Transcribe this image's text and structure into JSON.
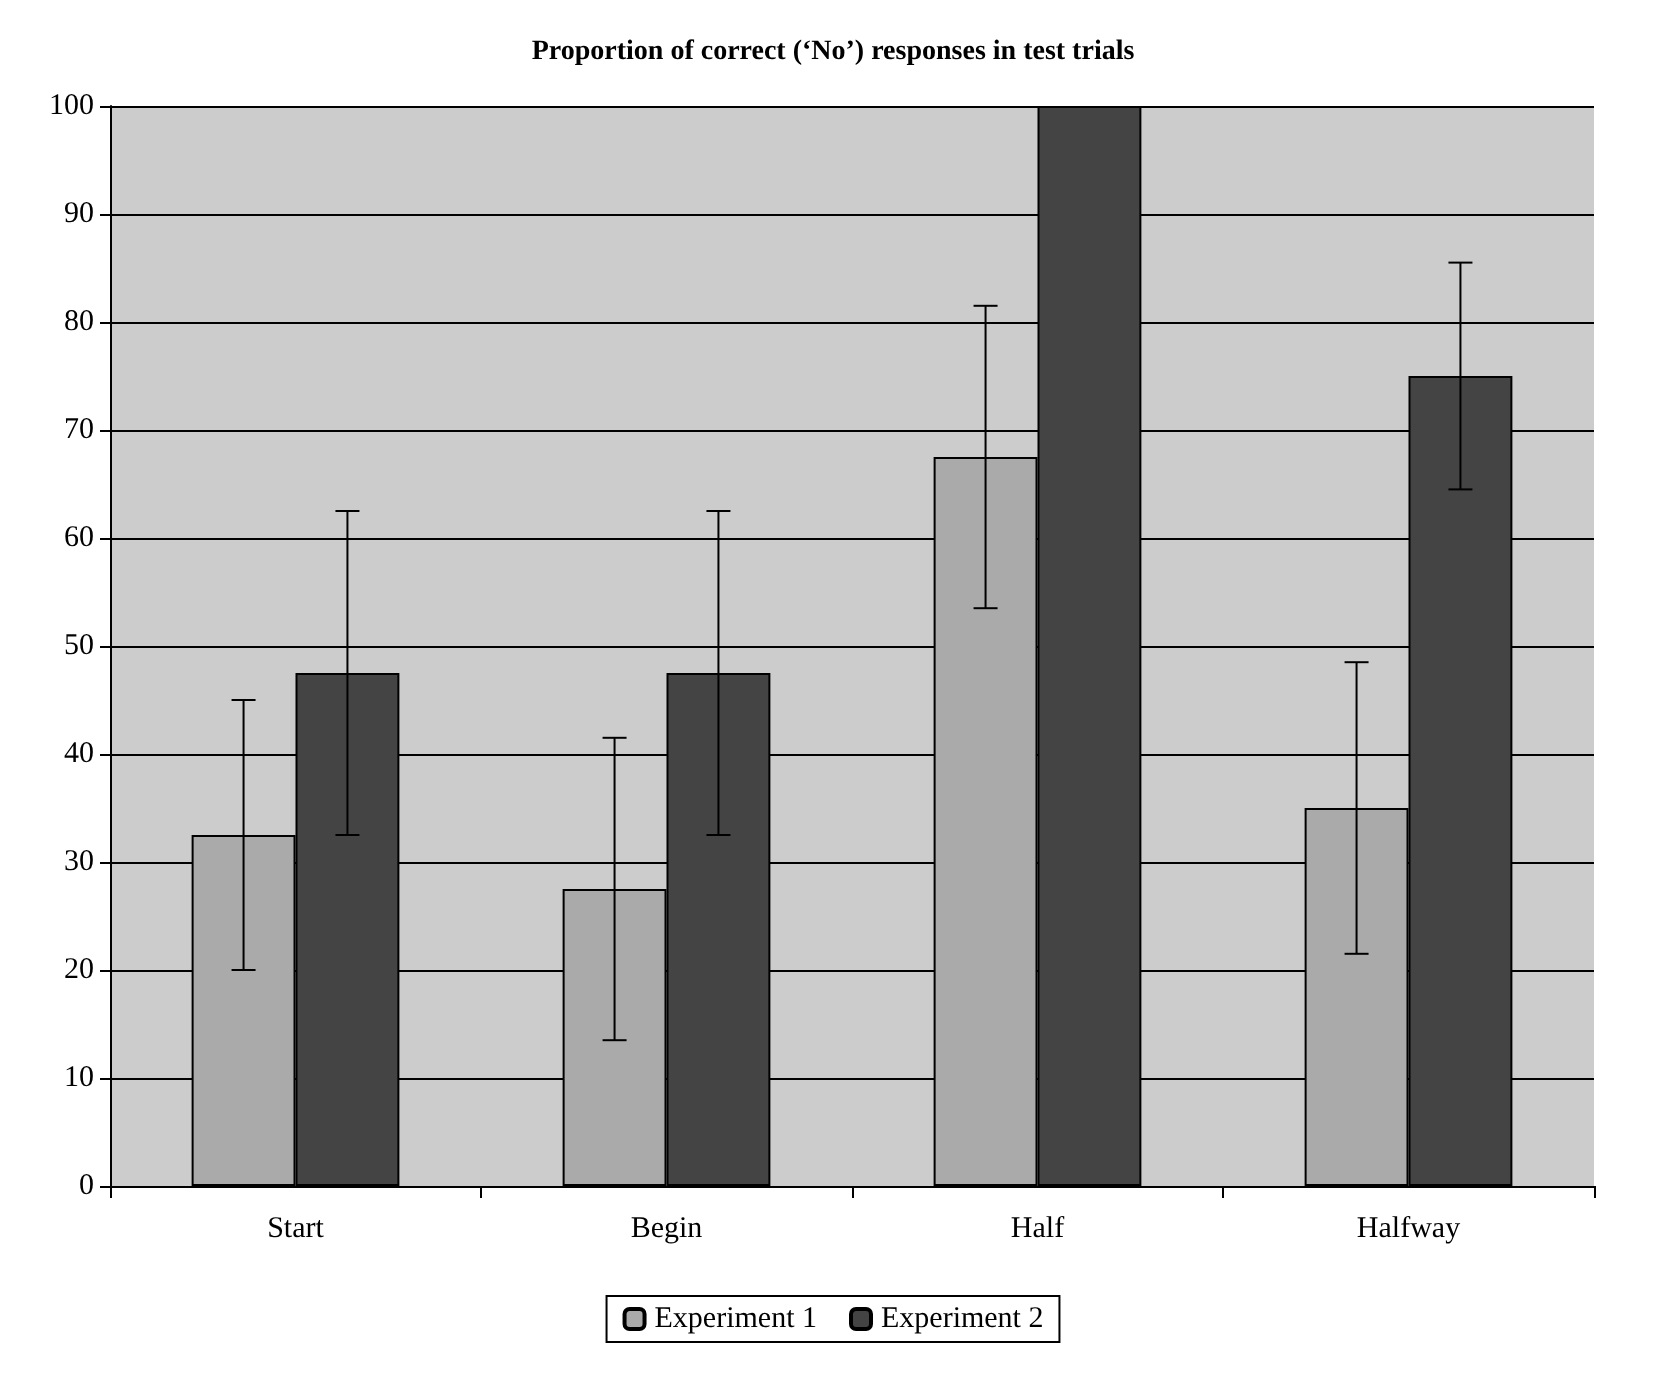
{
  "chart_data": {
    "type": "bar",
    "title": "Proportion of correct (‘No’) responses in test trials",
    "categories": [
      "Start",
      "Begin",
      "Half",
      "Halfway"
    ],
    "series": [
      {
        "name": "Experiment 1",
        "color": "#aaaaaa",
        "values": [
          32.5,
          27.5,
          67.5,
          35
        ],
        "errors": [
          [
            20,
            45
          ],
          [
            13.5,
            41.5
          ],
          [
            53.5,
            81.5
          ],
          [
            21.5,
            48.5
          ]
        ]
      },
      {
        "name": "Experiment 2",
        "color": "#444444",
        "values": [
          47.5,
          47.5,
          100,
          75
        ],
        "errors": [
          [
            32.5,
            62.5
          ],
          [
            32.5,
            62.5
          ],
          null,
          [
            64.5,
            85.5
          ]
        ]
      }
    ],
    "ylim": [
      0,
      100
    ],
    "yticks": [
      0,
      10,
      20,
      30,
      40,
      50,
      60,
      70,
      80,
      90,
      100
    ],
    "grid": "y",
    "legend": "bottom"
  }
}
